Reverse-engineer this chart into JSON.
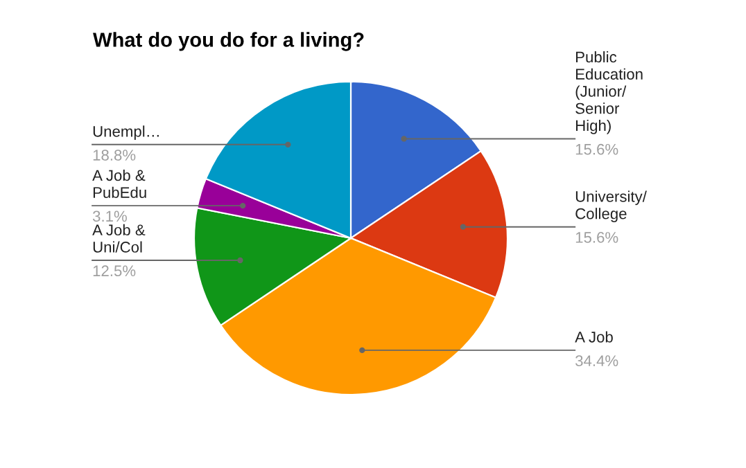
{
  "chart_data": {
    "type": "pie",
    "title": "What do you do for a living?",
    "categories": [
      "Public\nEducation\n(Junior/\nSenior\nHigh)",
      "University/\nCollege",
      "A Job",
      "A Job &\nUni/Col",
      "A Job &\nPubEdu",
      "Unempl…"
    ],
    "values": [
      15.6,
      15.6,
      34.4,
      12.5,
      3.1,
      18.8
    ],
    "colors": [
      "#3366cc",
      "#dc3912",
      "#ff9900",
      "#109618",
      "#990099",
      "#0099c6"
    ],
    "value_labels": [
      "15.6%",
      "15.6%",
      "34.4%",
      "12.5%",
      "3.1%",
      "18.8%"
    ]
  }
}
